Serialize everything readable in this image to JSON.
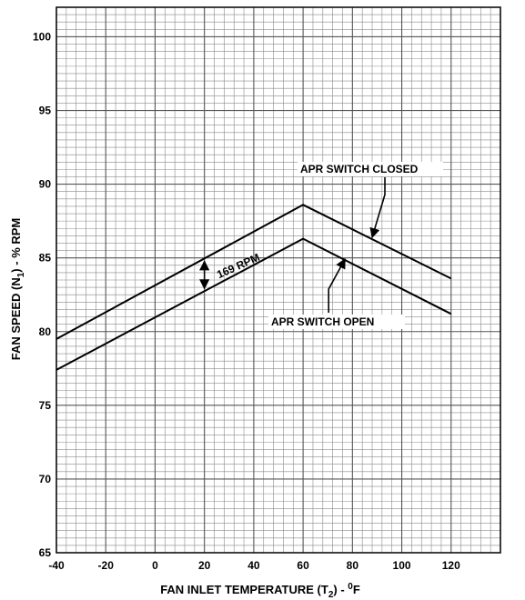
{
  "chart_data": {
    "type": "line",
    "xlabel_main": "FAN INLET TEMPERATURE (T",
    "xlabel_sub": "2",
    "xlabel_tail": ") - ",
    "xlabel_sup": "0",
    "xlabel_unit": "F",
    "ylabel_main": "FAN SPEED (N",
    "ylabel_sub": "1",
    "ylabel_tail": ") - % RPM",
    "xlim": [
      -40,
      140
    ],
    "ylim": [
      65,
      102
    ],
    "x_ticks": [
      -40,
      -20,
      0,
      20,
      40,
      60,
      80,
      100,
      120
    ],
    "x_tick_labels": [
      "-40",
      "-20",
      "0",
      "20",
      "40",
      "60",
      "80",
      "100",
      "120"
    ],
    "y_ticks": [
      65,
      70,
      75,
      80,
      85,
      90,
      95,
      100
    ],
    "y_tick_labels": [
      "65",
      "70",
      "75",
      "80",
      "85",
      "90",
      "95",
      "100"
    ],
    "grid": true,
    "series": [
      {
        "name": "APR SWITCH CLOSED",
        "x": [
          -40,
          60,
          120
        ],
        "y": [
          79.5,
          88.6,
          83.6
        ]
      },
      {
        "name": "APR SWITCH OPEN",
        "x": [
          -40,
          60,
          120
        ],
        "y": [
          77.4,
          86.3,
          81.2
        ]
      }
    ],
    "annotations": {
      "rpm_delta": "169 RPM",
      "rpm_delta_x": 20
    }
  }
}
